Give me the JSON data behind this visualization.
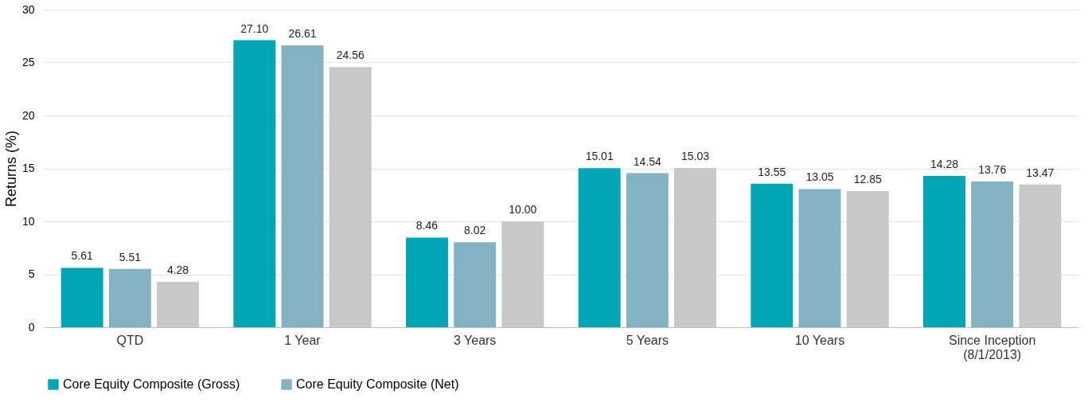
{
  "chart_data": {
    "type": "bar",
    "ylabel": "Returns (%)",
    "categories": [
      "QTD",
      "1 Year",
      "3 Years",
      "5 Years",
      "10 Years",
      "Since Inception\n(8/1/2013)"
    ],
    "series": [
      {
        "name": "Core Equity Composite (Gross)",
        "color": "#00a6b4",
        "values": [
          5.61,
          27.1,
          8.46,
          15.01,
          13.55,
          14.28
        ],
        "value_labels": [
          "5.61",
          "27.10",
          "8.46",
          "15.01",
          "13.55",
          "14.28"
        ]
      },
      {
        "name": "Core Equity Composite (Net)",
        "color": "#83b2c3",
        "values": [
          5.51,
          26.61,
          8.02,
          14.54,
          13.05,
          13.76
        ],
        "value_labels": [
          "5.51",
          "26.61",
          "8.02",
          "14.54",
          "13.05",
          "13.76"
        ]
      },
      {
        "color": "#c8c8c8",
        "values": [
          4.28,
          24.56,
          10.0,
          15.03,
          12.85,
          13.47
        ],
        "value_labels": [
          "4.28",
          "24.56",
          "10.00",
          "15.03",
          "12.85",
          "13.47"
        ]
      }
    ],
    "ylim": [
      0,
      30
    ],
    "yticks": [
      0,
      5,
      10,
      15,
      20,
      25,
      30
    ],
    "grid": "y",
    "legend": "bottom"
  }
}
